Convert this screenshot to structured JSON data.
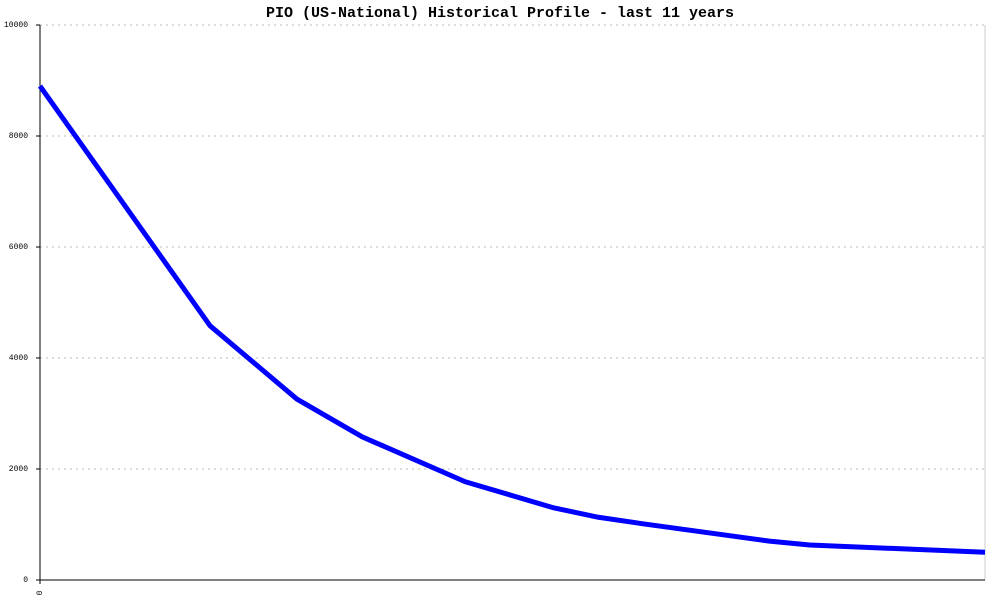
{
  "chart_data": {
    "type": "line",
    "title": "PIO (US-National) Historical Profile - last 11 years",
    "x": [
      0,
      1.98,
      2.99,
      3.75,
      4.95,
      5.98,
      6.5,
      7.03,
      8.49,
      8.96,
      11
    ],
    "series": [
      {
        "color": "#0000ff",
        "values": [
          8900,
          4580,
          3260,
          2580,
          1770,
          1300,
          1130,
          1010,
          700,
          630,
          500
        ]
      }
    ],
    "xlim": [
      0,
      11
    ],
    "xticks": [
      0
    ],
    "ylim": [
      0,
      10000
    ],
    "yticks": [
      0,
      2000,
      4000,
      6000,
      8000,
      10000
    ],
    "grid": true
  }
}
